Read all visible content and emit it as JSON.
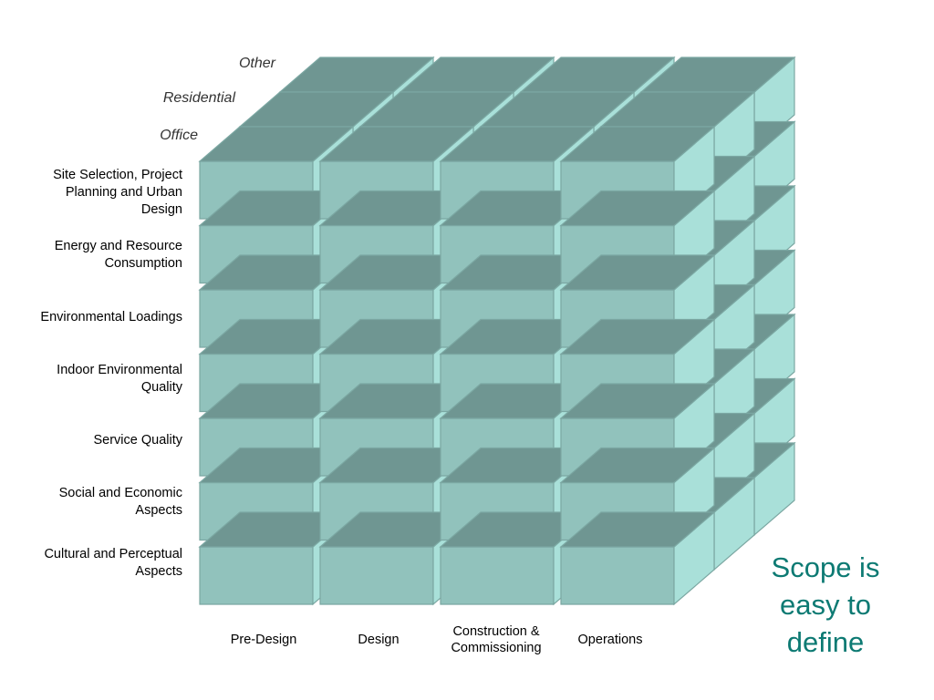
{
  "colors": {
    "front": "#91c2bc",
    "top": "#6f9692",
    "right_side": "#a9e0d9",
    "gap": "#7ba7a2",
    "caption": "#0d7a73"
  },
  "depth_labels": [
    "Office",
    "Residential",
    "Other"
  ],
  "row_labels": [
    "Site Selection, Project\nPlanning and Urban\nDesign",
    "Energy and Resource\nConsumption",
    "Environmental Loadings",
    "Indoor Environmental\nQuality",
    "Service Quality",
    "Social and Economic\nAspects",
    "Cultural and Perceptual\nAspects"
  ],
  "column_labels": [
    "Pre-Design",
    "Design",
    "Construction &\nCommissioning",
    "Operations"
  ],
  "caption": "Scope is\neasy to\ndefine"
}
